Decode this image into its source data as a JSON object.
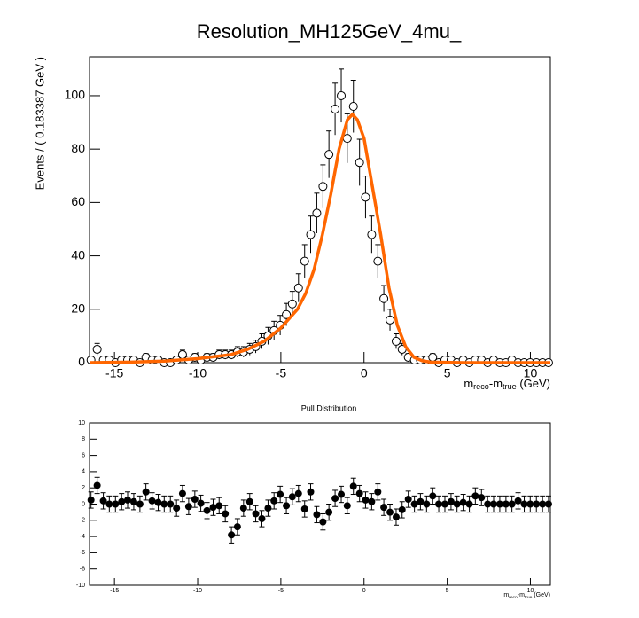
{
  "chart_data": [
    {
      "type": "errorbar",
      "title": "Resolution_MH125GeV_4mu_",
      "y_label": "Events / ( 0.183387 GeV )",
      "x_label": {
        "main": "m",
        "sub1": "reco",
        "mid": "-m",
        "sub2": "true",
        "unit": " (GeV)"
      },
      "xlim": [
        -16.5,
        11.2
      ],
      "ylim": [
        0,
        114.6
      ],
      "xticks": [
        -15,
        -10,
        -5,
        0,
        5,
        10
      ],
      "yticks": [
        0,
        20,
        40,
        60,
        80,
        100
      ],
      "x": [
        -16.41,
        -16.04,
        -15.67,
        -15.31,
        -14.94,
        -14.57,
        -14.21,
        -13.84,
        -13.47,
        -13.11,
        -12.74,
        -12.37,
        -12.01,
        -11.64,
        -11.27,
        -10.91,
        -10.54,
        -10.17,
        -9.81,
        -9.44,
        -9.07,
        -8.71,
        -8.34,
        -7.97,
        -7.61,
        -7.24,
        -6.87,
        -6.51,
        -6.14,
        -5.77,
        -5.41,
        -5.04,
        -4.67,
        -4.31,
        -3.94,
        -3.57,
        -3.21,
        -2.84,
        -2.47,
        -2.11,
        -1.74,
        -1.37,
        -1.01,
        -0.64,
        -0.27,
        0.09,
        0.46,
        0.83,
        1.19,
        1.56,
        1.93,
        2.29,
        2.66,
        3.03,
        3.39,
        3.76,
        4.13,
        4.49,
        4.86,
        5.23,
        5.59,
        5.96,
        6.33,
        6.69,
        7.06,
        7.43,
        7.79,
        8.16,
        8.53,
        8.89,
        9.26,
        9.63,
        9.99,
        10.36,
        10.73,
        11.09
      ],
      "values": [
        1,
        5,
        1,
        1,
        0,
        1,
        1,
        1,
        0,
        2,
        1,
        1,
        0,
        0,
        1,
        3,
        1,
        2,
        1,
        2,
        2,
        3,
        3,
        3,
        4,
        4,
        5,
        6,
        8,
        10,
        12,
        14,
        18,
        22,
        28,
        38,
        48,
        56,
        66,
        78,
        95,
        100,
        84,
        96,
        75,
        62,
        48,
        38,
        24,
        16,
        8,
        5,
        2,
        1,
        1,
        1,
        2,
        0,
        1,
        1,
        0,
        1,
        0,
        1,
        1,
        0,
        1,
        0,
        0,
        1,
        0,
        0,
        0,
        0,
        0,
        0
      ],
      "errors": [
        1,
        2.2,
        1,
        1,
        1.1,
        1,
        1,
        1,
        1.1,
        1.4,
        1,
        1,
        1.1,
        1.1,
        1,
        1.7,
        1,
        1.4,
        1,
        1.4,
        1.4,
        1.7,
        1.7,
        1.7,
        2,
        2,
        2.2,
        2.4,
        2.8,
        3.2,
        3.5,
        3.7,
        4.2,
        4.7,
        5.3,
        6.2,
        6.9,
        7.5,
        8.1,
        8.8,
        9.7,
        10,
        9.2,
        9.8,
        8.7,
        7.9,
        6.9,
        6.2,
        4.9,
        4,
        2.8,
        2.2,
        1.4,
        1,
        1,
        1,
        1.4,
        1.1,
        1,
        1,
        1.1,
        1,
        1.1,
        1,
        1,
        1.1,
        1,
        1.1,
        1.1,
        1,
        1.1,
        1.1,
        1.1,
        1.1,
        1.1,
        1.1
      ],
      "fit": {
        "color": "#ff6600",
        "x": [
          -16.5,
          -14,
          -12,
          -10,
          -8,
          -7,
          -6,
          -5,
          -4,
          -3.5,
          -3,
          -2.5,
          -2,
          -1.5,
          -1,
          -0.7,
          -0.4,
          0,
          0.5,
          1,
          1.5,
          2,
          2.5,
          3,
          3.5,
          4,
          6,
          8,
          11.2
        ],
        "values": [
          0,
          0.2,
          0.6,
          1.5,
          3,
          5,
          8,
          13,
          20,
          26,
          35,
          48,
          63,
          80,
          91,
          93,
          91,
          84,
          66,
          48,
          28,
          14,
          6,
          2,
          0.7,
          0.2,
          0,
          0,
          0
        ]
      }
    },
    {
      "type": "pull",
      "title": "Pull Distribution",
      "x_label": {
        "main": "m",
        "sub1": "reco",
        "mid": "-m",
        "sub2": "true",
        "unit": " (GeV)"
      },
      "xlim": [
        -16.5,
        11.2
      ],
      "ylim": [
        -10,
        10
      ],
      "xticks": [
        -15,
        -10,
        -5,
        0,
        5,
        10
      ],
      "yticks": [
        -10,
        -8,
        -6,
        -4,
        -2,
        0,
        2,
        4,
        6,
        8,
        10
      ],
      "x": [
        -16.41,
        -16.04,
        -15.67,
        -15.31,
        -14.94,
        -14.57,
        -14.21,
        -13.84,
        -13.47,
        -13.11,
        -12.74,
        -12.37,
        -12.01,
        -11.64,
        -11.27,
        -10.91,
        -10.54,
        -10.17,
        -9.81,
        -9.44,
        -9.07,
        -8.71,
        -8.34,
        -7.97,
        -7.61,
        -7.24,
        -6.87,
        -6.51,
        -6.14,
        -5.77,
        -5.41,
        -5.04,
        -4.67,
        -4.31,
        -3.94,
        -3.57,
        -3.21,
        -2.84,
        -2.47,
        -2.11,
        -1.74,
        -1.37,
        -1.01,
        -0.64,
        -0.27,
        0.09,
        0.46,
        0.83,
        1.19,
        1.56,
        1.93,
        2.29,
        2.66,
        3.03,
        3.39,
        3.76,
        4.13,
        4.49,
        4.86,
        5.23,
        5.59,
        5.96,
        6.33,
        6.69,
        7.06,
        7.43,
        7.79,
        8.16,
        8.53,
        8.89,
        9.26,
        9.63,
        9.99,
        10.36,
        10.73,
        11.09
      ],
      "values": [
        0.5,
        2.3,
        0.4,
        0,
        0,
        0.3,
        0.5,
        0.3,
        0,
        1.5,
        0.4,
        0.2,
        0,
        0,
        -0.5,
        1.3,
        -0.3,
        0.6,
        0.1,
        -0.8,
        -0.4,
        -0.2,
        -1.2,
        -3.8,
        -2.8,
        -0.5,
        0.3,
        -1.2,
        -1.8,
        -0.5,
        0.4,
        1.2,
        -0.2,
        0.9,
        1.3,
        -0.6,
        1.5,
        -1.3,
        -2.2,
        -1.0,
        0.7,
        1.2,
        -0.2,
        2.2,
        1.3,
        0.5,
        0.3,
        1.5,
        -0.4,
        -1.0,
        -1.6,
        -0.7,
        0.6,
        0,
        0.3,
        0,
        1.0,
        0,
        0,
        0.3,
        0,
        0.2,
        0,
        1.0,
        0.8,
        0,
        0,
        0,
        0,
        0,
        0.4,
        0,
        0,
        0,
        0,
        0
      ],
      "pull_error": 1
    }
  ]
}
